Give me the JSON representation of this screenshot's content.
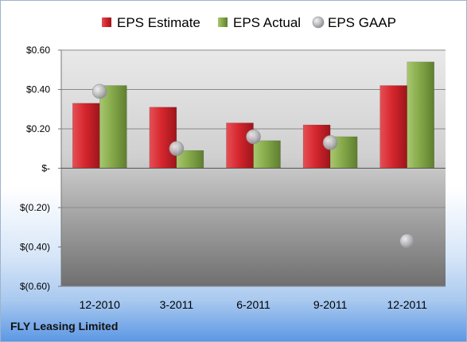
{
  "company": "FLY Leasing Limited",
  "colors": {
    "estimate": "#c8202a",
    "actual": "#7fa344",
    "gaap": "#b9b9bd"
  },
  "chart_data": {
    "type": "bar",
    "categories": [
      "12-2010",
      "3-2011",
      "6-2011",
      "9-2011",
      "12-2011"
    ],
    "series": [
      {
        "name": "EPS Estimate",
        "type": "bar",
        "values": [
          0.33,
          0.31,
          0.23,
          0.22,
          0.42
        ]
      },
      {
        "name": "EPS Actual",
        "type": "bar",
        "values": [
          0.42,
          0.09,
          0.14,
          0.16,
          0.54
        ]
      },
      {
        "name": "EPS GAAP",
        "type": "scatter",
        "values": [
          0.39,
          0.1,
          0.16,
          0.13,
          -0.37
        ]
      }
    ],
    "y_ticks": [
      0.6,
      0.4,
      0.2,
      0,
      -0.2,
      -0.4,
      -0.6
    ],
    "y_tick_labels": [
      "$0.60",
      "$0.40",
      "$0.20",
      "$-",
      "$(0.20)",
      "$(0.40)",
      "$(0.60)"
    ],
    "ylim": [
      -0.6,
      0.6
    ],
    "legend_position": "top",
    "grid": true
  }
}
